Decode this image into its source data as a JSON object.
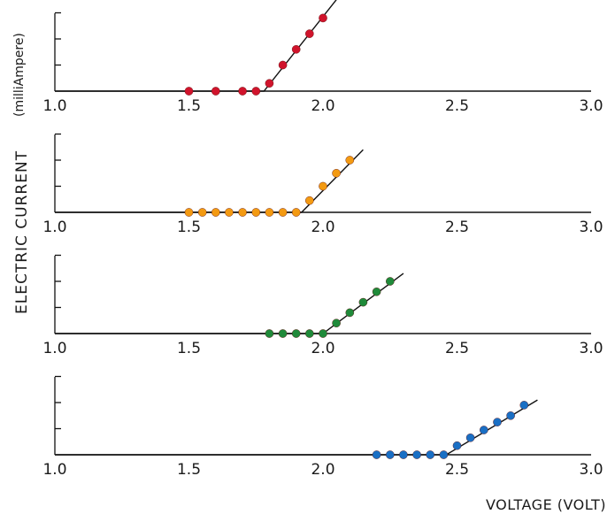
{
  "chart_data": [
    {
      "type": "scatter",
      "x_range": [
        1.0,
        3.0
      ],
      "x_ticks": [
        "1.0",
        "1.5",
        "2.0",
        "2.5",
        "3.0"
      ],
      "color": "#d0142c",
      "points": [
        [
          1.5,
          0
        ],
        [
          1.6,
          0
        ],
        [
          1.7,
          0
        ],
        [
          1.75,
          0
        ],
        [
          1.8,
          0.3
        ],
        [
          1.85,
          1.0
        ],
        [
          1.9,
          1.6
        ],
        [
          1.95,
          2.2
        ],
        [
          2.0,
          2.8
        ]
      ],
      "fit_line": [
        [
          1.0,
          0
        ],
        [
          1.78,
          0
        ],
        [
          2.05,
          3.5
        ]
      ]
    },
    {
      "type": "scatter",
      "x_range": [
        1.0,
        3.0
      ],
      "x_ticks": [
        "1.0",
        "1.5",
        "2.0",
        "2.5",
        "3.0"
      ],
      "color": "#f39a12",
      "points": [
        [
          1.5,
          0
        ],
        [
          1.55,
          0
        ],
        [
          1.6,
          0
        ],
        [
          1.65,
          0
        ],
        [
          1.7,
          0
        ],
        [
          1.75,
          0
        ],
        [
          1.8,
          0
        ],
        [
          1.85,
          0
        ],
        [
          1.9,
          0
        ],
        [
          1.95,
          0.45
        ],
        [
          2.0,
          1.0
        ],
        [
          2.05,
          1.5
        ],
        [
          2.1,
          2.0
        ]
      ],
      "fit_line": [
        [
          1.0,
          0
        ],
        [
          1.92,
          0
        ],
        [
          2.15,
          2.4
        ]
      ]
    },
    {
      "type": "scatter",
      "x_range": [
        1.0,
        3.0
      ],
      "x_ticks": [
        "1.0",
        "1.5",
        "2.0",
        "2.5",
        "3.0"
      ],
      "color": "#1f8a3a",
      "points": [
        [
          1.8,
          0
        ],
        [
          1.85,
          0
        ],
        [
          1.9,
          0
        ],
        [
          1.95,
          0
        ],
        [
          2.0,
          0
        ],
        [
          2.05,
          0.4
        ],
        [
          2.1,
          0.8
        ],
        [
          2.15,
          1.2
        ],
        [
          2.2,
          1.6
        ],
        [
          2.25,
          2.0
        ]
      ],
      "fit_line": [
        [
          1.0,
          0
        ],
        [
          2.0,
          0
        ],
        [
          2.3,
          2.3
        ]
      ]
    },
    {
      "type": "scatter",
      "x_range": [
        1.0,
        3.0
      ],
      "x_ticks": [
        "1.0",
        "1.5",
        "2.0",
        "2.5",
        "3.0"
      ],
      "color": "#1a6fc4",
      "points": [
        [
          2.2,
          0
        ],
        [
          2.25,
          0
        ],
        [
          2.3,
          0
        ],
        [
          2.35,
          0
        ],
        [
          2.4,
          0
        ],
        [
          2.45,
          0
        ],
        [
          2.5,
          0.35
        ],
        [
          2.55,
          0.65
        ],
        [
          2.6,
          0.95
        ],
        [
          2.65,
          1.25
        ],
        [
          2.7,
          1.5
        ],
        [
          2.75,
          1.9
        ]
      ],
      "fit_line": [
        [
          1.0,
          0
        ],
        [
          2.46,
          0
        ],
        [
          2.8,
          2.1
        ]
      ]
    }
  ],
  "ylabel_main": "ELECTRIC   CURRENT",
  "ylabel_unit": "(milliAmpere)",
  "xlabel": "VOLTAGE  (VOLT)"
}
